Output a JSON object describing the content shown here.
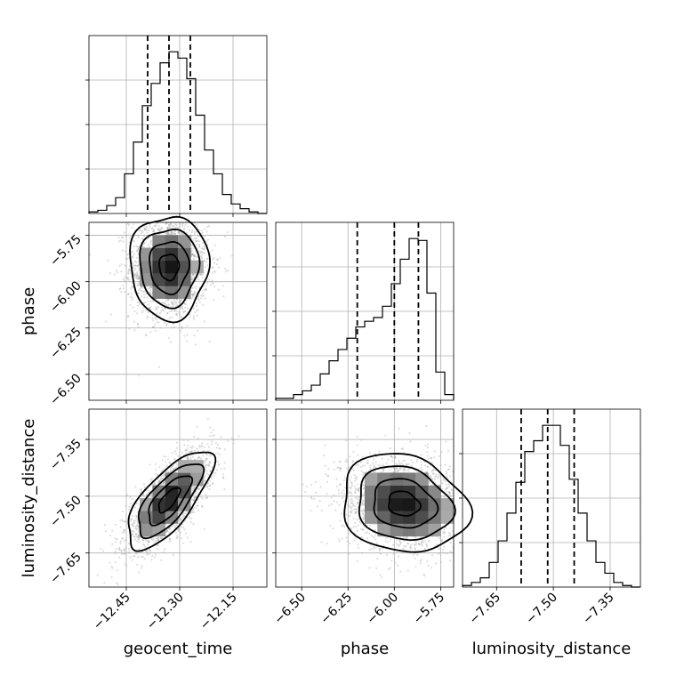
{
  "chart_data": {
    "type": "corner",
    "params": [
      "geocent_time",
      "phase",
      "luminosity_distance"
    ],
    "axis_labels": [
      "geocent_time",
      "phase",
      "luminosity_distance"
    ],
    "ranges": [
      [
        -12.555,
        -12.055
      ],
      [
        -6.64,
        -5.68
      ],
      [
        -7.74,
        -7.27
      ]
    ],
    "ticks": {
      "geocent_time": [
        -12.45,
        -12.3,
        -12.15
      ],
      "phase": [
        -6.5,
        -6.25,
        -6.0,
        -5.75
      ],
      "luminosity_distance": [
        -7.65,
        -7.5,
        -7.35
      ]
    },
    "tick_labels": {
      "geocent_time": [
        "−12.45",
        "−12.30",
        "−12.15"
      ],
      "phase": [
        "−6.50",
        "−6.25",
        "−6.00",
        "−5.75"
      ],
      "luminosity_distance": [
        "−7.65",
        "−7.50",
        "−7.35"
      ]
    },
    "quantiles": {
      "geocent_time": [
        -12.39,
        -12.33,
        -12.27
      ],
      "phase": [
        -6.2,
        -6.0,
        -5.87
      ],
      "luminosity_distance": [
        -7.585,
        -7.515,
        -7.445
      ]
    },
    "histograms": {
      "geocent_time": [
        1,
        2,
        5,
        10,
        25,
        45,
        68,
        82,
        95,
        102,
        98,
        85,
        62,
        40,
        25,
        12,
        6,
        3,
        1,
        0
      ],
      "phase": [
        1,
        1,
        3,
        5,
        8,
        14,
        21,
        27,
        33,
        39,
        42,
        44,
        50,
        62,
        75,
        86,
        85,
        57,
        15,
        3
      ],
      "luminosity_distance": [
        1,
        3,
        6,
        16,
        30,
        48,
        68,
        88,
        95,
        105,
        105,
        92,
        70,
        48,
        30,
        16,
        9,
        3,
        1,
        0
      ]
    },
    "pairs": [
      {
        "x": "geocent_time",
        "y": "phase",
        "center": [
          -12.33,
          -5.92
        ],
        "sigma": [
          0.055,
          0.14
        ],
        "corr": 0.0,
        "n": 2000
      },
      {
        "x": "geocent_time",
        "y": "luminosity_distance",
        "center": [
          -12.33,
          -7.51
        ],
        "sigma": [
          0.06,
          0.065
        ],
        "corr": 0.72,
        "n": 2000
      },
      {
        "x": "phase",
        "y": "luminosity_distance",
        "center": [
          -5.95,
          -7.52
        ],
        "sigma": [
          0.17,
          0.065
        ],
        "corr": -0.15,
        "n": 2000
      }
    ],
    "grid": true
  }
}
